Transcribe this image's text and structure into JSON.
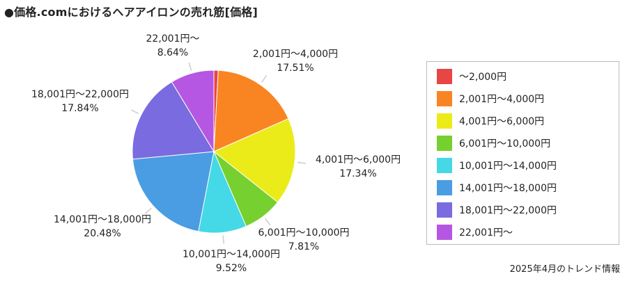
{
  "title": "●価格.comにおけるヘアアイロンの売れ筋[価格]",
  "footnote": "2025年4月のトレンド情報",
  "chart_data": {
    "type": "pie",
    "categories": [
      "～2,000円",
      "2,001円～4,000円",
      "4,001円～6,000円",
      "6,001円～10,000円",
      "10,001円～14,000円",
      "14,001円～18,000円",
      "18,001円～22,000円",
      "22,001円～"
    ],
    "values": [
      0.86,
      17.51,
      17.34,
      7.81,
      9.52,
      20.48,
      17.84,
      8.64
    ],
    "labels": [
      "",
      "17.51%",
      "17.34%",
      "7.81%",
      "9.52%",
      "20.48%",
      "17.84%",
      "8.64%"
    ],
    "colors": [
      "#e84545",
      "#f98522",
      "#eceb1a",
      "#76d02f",
      "#45d8e6",
      "#4a9de2",
      "#7a6be0",
      "#b557e2"
    ],
    "legend": "right"
  }
}
